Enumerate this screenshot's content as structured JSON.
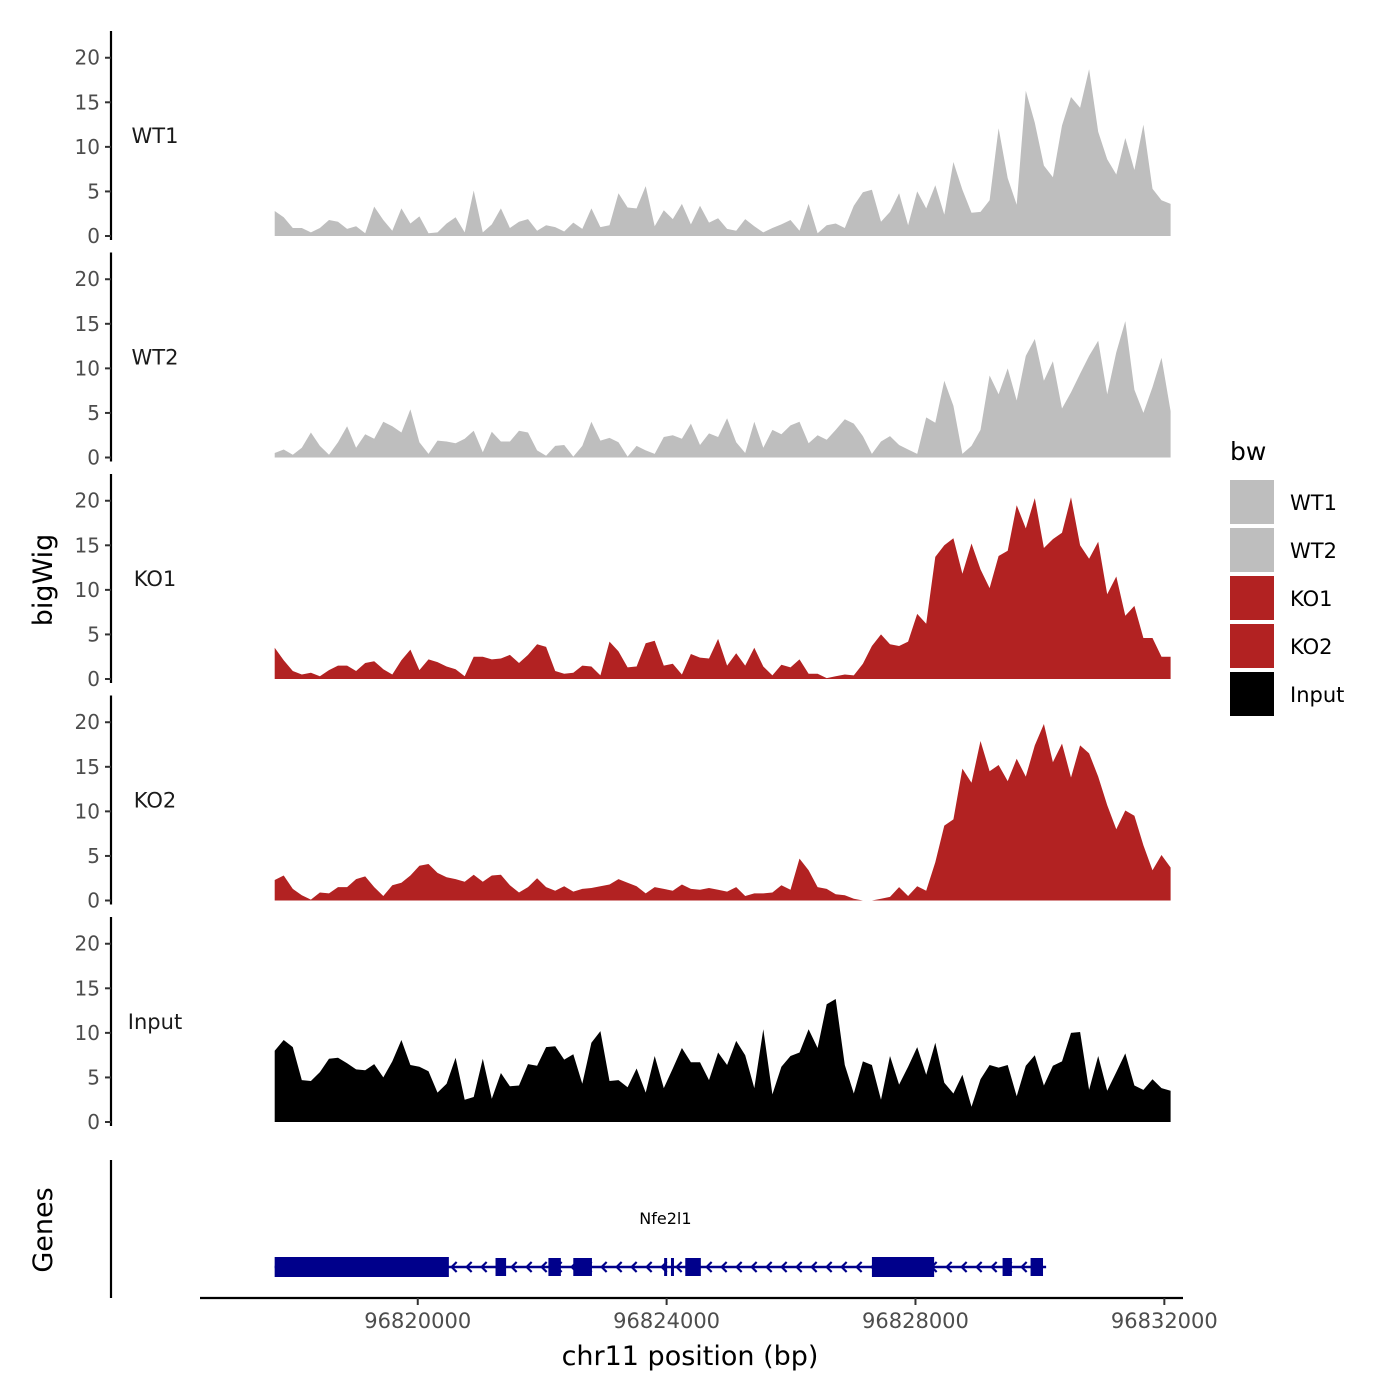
{
  "chart_data": {
    "type": "area",
    "title": "",
    "ylabel": "bigWig",
    "xlabel": "chr11 position (bp)",
    "genes_label": "Genes",
    "legend": {
      "title": "bw",
      "placement": "right",
      "entries": [
        {
          "label": "WT1",
          "color": "#bebebe"
        },
        {
          "label": "WT2",
          "color": "#bebebe"
        },
        {
          "label": "KO1",
          "color": "#b22222"
        },
        {
          "label": "KO2",
          "color": "#b22222"
        },
        {
          "label": "Input",
          "color": "#000000"
        }
      ]
    },
    "xlim": [
      96816500,
      96832300
    ],
    "x_ticks": [
      {
        "value": 96820000,
        "label": "96820000"
      },
      {
        "value": 96824000,
        "label": "96824000"
      },
      {
        "value": 96828000,
        "label": "96828000"
      },
      {
        "value": 96832000,
        "label": "96832000"
      }
    ],
    "ylim": [
      0,
      23
    ],
    "y_ticks": [
      {
        "value": 0,
        "label": "0"
      },
      {
        "value": 5,
        "label": "5"
      },
      {
        "value": 10,
        "label": "10"
      },
      {
        "value": 15,
        "label": "15"
      },
      {
        "value": 20,
        "label": "20"
      }
    ],
    "series": [
      {
        "name": "WT1",
        "color": "#bebebe",
        "x_start": 96817700,
        "x_end": 96832100,
        "values": [
          2.8,
          2.1,
          0.9,
          0.9,
          0.4,
          0.9,
          1.8,
          1.6,
          0.8,
          1.1,
          0.3,
          3.3,
          1.8,
          0.6,
          3.1,
          1.4,
          2.2,
          0.3,
          0.4,
          1.4,
          2.1,
          0.4,
          5.1,
          0.4,
          1.3,
          3.1,
          0.9,
          1.6,
          1.9,
          0.6,
          1.2,
          1.0,
          0.5,
          1.5,
          0.8,
          3.1,
          1.0,
          1.2,
          4.8,
          3.2,
          3.1,
          5.6,
          1.1,
          2.9,
          1.9,
          3.6,
          1.3,
          3.4,
          1.5,
          2.0,
          0.8,
          0.6,
          1.9,
          1.1,
          0.4,
          0.9,
          1.3,
          1.8,
          0.6,
          3.6,
          0.3,
          1.2,
          1.4,
          0.9,
          3.4,
          4.9,
          5.2,
          1.6,
          2.7,
          4.8,
          1.2,
          5.0,
          3.1,
          5.7,
          2.4,
          8.3,
          5.2,
          2.6,
          2.7,
          4.0,
          12.1,
          6.5,
          3.5,
          16.3,
          12.7,
          7.9,
          6.6,
          12.4,
          15.6,
          14.4,
          18.7,
          11.7,
          8.6,
          6.9,
          11.0,
          7.4,
          12.5,
          5.3,
          4.0,
          3.6
        ]
      },
      {
        "name": "WT2",
        "color": "#bebebe",
        "x_start": 96817700,
        "x_end": 96832100,
        "values": [
          0.5,
          0.9,
          0.3,
          1.1,
          2.8,
          1.3,
          0.3,
          1.7,
          3.5,
          1.1,
          2.6,
          2.1,
          4.0,
          3.5,
          2.8,
          5.4,
          1.7,
          0.4,
          1.9,
          1.8,
          1.6,
          2.1,
          3.0,
          0.6,
          2.9,
          1.8,
          1.8,
          3.0,
          2.8,
          0.8,
          0.2,
          1.3,
          1.4,
          0.1,
          1.3,
          4.0,
          1.9,
          2.2,
          1.7,
          0.1,
          1.3,
          0.8,
          0.4,
          2.3,
          2.5,
          2.1,
          3.8,
          1.4,
          2.7,
          2.3,
          4.4,
          1.7,
          0.5,
          4.0,
          1.1,
          3.1,
          2.6,
          3.6,
          4.0,
          1.6,
          2.5,
          2.0,
          3.1,
          4.3,
          3.8,
          2.4,
          0.4,
          1.8,
          2.4,
          1.4,
          0.9,
          0.4,
          4.5,
          3.9,
          8.6,
          5.8,
          0.4,
          1.3,
          3.1,
          9.2,
          7.1,
          10.0,
          6.4,
          11.4,
          13.3,
          8.6,
          10.8,
          5.5,
          7.3,
          9.4,
          11.4,
          13.1,
          7.1,
          11.8,
          15.3,
          7.6,
          5.0,
          7.9,
          11.2,
          5.2
        ]
      },
      {
        "name": "KO1",
        "color": "#b22222",
        "x_start": 96817700,
        "x_end": 96832100,
        "values": [
          3.5,
          2.1,
          0.9,
          0.5,
          0.7,
          0.3,
          1.0,
          1.5,
          1.5,
          0.9,
          1.8,
          2.0,
          1.1,
          0.5,
          2.1,
          3.3,
          1.0,
          2.2,
          1.9,
          1.4,
          1.1,
          0.3,
          2.5,
          2.5,
          2.2,
          2.3,
          2.7,
          1.8,
          2.7,
          3.9,
          3.6,
          0.9,
          0.6,
          0.7,
          1.5,
          1.4,
          0.4,
          4.2,
          3.1,
          1.3,
          1.4,
          4.0,
          4.3,
          1.5,
          1.7,
          0.5,
          2.8,
          2.4,
          2.3,
          4.5,
          1.5,
          2.9,
          1.5,
          3.5,
          1.4,
          0.4,
          1.6,
          1.3,
          2.2,
          0.6,
          0.6,
          0.1,
          0.3,
          0.5,
          0.4,
          1.7,
          3.7,
          5.0,
          3.9,
          3.7,
          4.2,
          7.3,
          6.2,
          13.7,
          15.0,
          15.8,
          11.8,
          15.2,
          12.3,
          10.2,
          13.8,
          14.4,
          19.5,
          16.9,
          20.3,
          14.7,
          15.7,
          16.4,
          20.4,
          15.0,
          13.5,
          15.4,
          9.5,
          11.5,
          7.1,
          8.2,
          4.6,
          4.6,
          2.5,
          2.5
        ]
      },
      {
        "name": "KO2",
        "color": "#b22222",
        "x_start": 96817700,
        "x_end": 96832100,
        "values": [
          2.3,
          2.8,
          1.3,
          0.6,
          0.1,
          0.9,
          0.8,
          1.5,
          1.5,
          2.4,
          2.7,
          1.5,
          0.5,
          1.7,
          2.0,
          2.8,
          3.9,
          4.1,
          3.1,
          2.6,
          2.4,
          2.1,
          2.9,
          2.1,
          2.8,
          2.9,
          1.7,
          0.9,
          1.5,
          2.5,
          1.5,
          1.1,
          1.6,
          1.0,
          1.3,
          1.4,
          1.6,
          1.8,
          2.4,
          2.0,
          1.6,
          0.8,
          1.5,
          1.3,
          1.1,
          1.8,
          1.3,
          1.2,
          1.4,
          1.2,
          1.0,
          1.5,
          0.5,
          0.8,
          0.8,
          0.9,
          1.7,
          1.2,
          4.7,
          3.4,
          1.5,
          1.3,
          0.7,
          0.6,
          0.2,
          0.0,
          0.0,
          0.2,
          0.4,
          1.5,
          0.5,
          1.6,
          1.1,
          4.3,
          8.4,
          9.1,
          14.8,
          13.2,
          17.9,
          14.5,
          15.2,
          13.4,
          15.9,
          13.9,
          17.4,
          19.8,
          15.5,
          17.6,
          13.8,
          17.4,
          16.5,
          13.9,
          10.7,
          8.0,
          10.1,
          9.5,
          6.2,
          3.4,
          5.1,
          3.7
        ]
      },
      {
        "name": "Input",
        "color": "#000000",
        "x_start": 96817700,
        "x_end": 96832100,
        "values": [
          8.0,
          9.2,
          8.4,
          4.7,
          4.6,
          5.6,
          7.1,
          7.2,
          6.6,
          5.9,
          5.8,
          6.5,
          5.0,
          6.8,
          9.2,
          6.4,
          6.2,
          5.7,
          3.3,
          4.3,
          7.2,
          2.5,
          2.8,
          7.1,
          2.6,
          5.5,
          4.0,
          4.1,
          6.5,
          6.3,
          8.4,
          8.5,
          7.0,
          7.6,
          4.3,
          8.9,
          10.2,
          4.6,
          4.7,
          3.9,
          6.0,
          3.3,
          7.4,
          3.8,
          6.0,
          8.3,
          6.7,
          6.7,
          4.7,
          7.8,
          6.4,
          9.1,
          7.5,
          3.8,
          10.4,
          3.1,
          6.2,
          7.4,
          7.8,
          10.4,
          8.3,
          13.2,
          13.8,
          6.4,
          3.2,
          6.8,
          6.4,
          2.5,
          7.4,
          4.2,
          6.2,
          8.4,
          5.3,
          8.9,
          4.4,
          3.2,
          5.3,
          1.7,
          4.8,
          6.4,
          6.1,
          6.4,
          2.9,
          6.3,
          7.5,
          4.1,
          6.3,
          6.8,
          10.0,
          10.1,
          3.6,
          7.4,
          3.5,
          5.6,
          7.7,
          4.1,
          3.6,
          4.8,
          3.8,
          3.5
        ]
      }
    ],
    "gene_track": {
      "gene_name": "Nfe2l1",
      "strand": "-",
      "start": 96817700,
      "end": 96830100,
      "exons": [
        {
          "start": 96817700,
          "end": 96820500,
          "kind": "utr"
        },
        {
          "start": 96821250,
          "end": 96821420,
          "kind": "cds"
        },
        {
          "start": 96822100,
          "end": 96822300,
          "kind": "cds"
        },
        {
          "start": 96822500,
          "end": 96822800,
          "kind": "cds"
        },
        {
          "start": 96823960,
          "end": 96824000,
          "kind": "cds"
        },
        {
          "start": 96824070,
          "end": 96824100,
          "kind": "cds"
        },
        {
          "start": 96824300,
          "end": 96824550,
          "kind": "cds"
        },
        {
          "start": 96827300,
          "end": 96828300,
          "kind": "utr"
        },
        {
          "start": 96829400,
          "end": 96829550,
          "kind": "cds"
        },
        {
          "start": 96829850,
          "end": 96830050,
          "kind": "cds"
        }
      ]
    }
  }
}
